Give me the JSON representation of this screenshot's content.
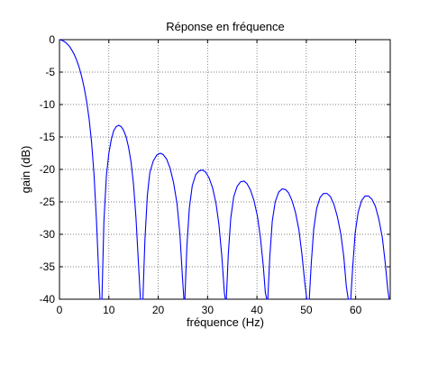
{
  "chart_data": {
    "type": "line",
    "title": "Réponse en fréquence",
    "xlabel": "fréquence (Hz)",
    "ylabel": "gain (dB)",
    "xlim": [
      0,
      67
    ],
    "ylim": [
      -40,
      0
    ],
    "xticks": [
      0,
      10,
      20,
      30,
      40,
      50,
      60
    ],
    "yticks": [
      0,
      -5,
      -10,
      -15,
      -20,
      -25,
      -30,
      -35,
      -40
    ],
    "grid": true,
    "line_color": "#0000ff",
    "series": [
      {
        "x": [
          0,
          0.5,
          1,
          1.5,
          2,
          2.5,
          3,
          3.5,
          4,
          4.5,
          5,
          5.5,
          6,
          6.5,
          7,
          7.5,
          8,
          8.2,
          8.4,
          8.6,
          9,
          9.5,
          10,
          10.5,
          11,
          11.5,
          12,
          12.5,
          13,
          13.5,
          14,
          14.5,
          15,
          15.5,
          16,
          16.4,
          16.7,
          16.9,
          17.3,
          17.8,
          18.3,
          19,
          19.7,
          20.4,
          21,
          21.7,
          22.4,
          23.1,
          23.8,
          24.4,
          24.9,
          25.2,
          25.4,
          25.8,
          26.3,
          26.9,
          27.6,
          28.3,
          29,
          29.6,
          30.3,
          31,
          31.7,
          32.3,
          32.9,
          33.4,
          33.6,
          33.8,
          34.2,
          34.7,
          35.3,
          36,
          36.7,
          37.4,
          38,
          38.7,
          39.4,
          40.1,
          40.7,
          41.3,
          41.7,
          42,
          42.2,
          42.6,
          43.1,
          43.7,
          44.4,
          45.1,
          45.8,
          46.4,
          47.1,
          47.8,
          48.5,
          49.1,
          49.7,
          50.1,
          50.4,
          50.6,
          51,
          51.5,
          52.1,
          52.8,
          53.5,
          54.2,
          54.9,
          55.6,
          56.3,
          57,
          57.6,
          58.1,
          58.5,
          58.8,
          59,
          59.4,
          59.9,
          60.5,
          61.2,
          61.9,
          62.6,
          63.3,
          64,
          64.7,
          65.4,
          66,
          66.5,
          66.8
        ],
        "y": [
          0,
          -0.1,
          -0.3,
          -0.6,
          -1.0,
          -1.6,
          -2.3,
          -3.2,
          -4.3,
          -5.7,
          -7.4,
          -9.5,
          -12.2,
          -15.8,
          -20.8,
          -28,
          -37,
          -40,
          -40,
          -40,
          -28,
          -21,
          -17.5,
          -15.4,
          -14.0,
          -13.4,
          -13.2,
          -13.4,
          -14.0,
          -15.0,
          -16.6,
          -18.9,
          -22.3,
          -27.5,
          -34.5,
          -40,
          -40,
          -40,
          -31,
          -24,
          -20.5,
          -18.7,
          -17.8,
          -17.5,
          -17.7,
          -18.4,
          -19.8,
          -22,
          -25.2,
          -30,
          -36.5,
          -40,
          -40,
          -32,
          -26,
          -22.5,
          -20.8,
          -20.2,
          -20.1,
          -20.4,
          -21.3,
          -22.8,
          -25.2,
          -28.5,
          -33.5,
          -39,
          -40,
          -40,
          -33,
          -27.5,
          -24.2,
          -22.6,
          -21.9,
          -21.8,
          -22.2,
          -23.2,
          -24.8,
          -27.2,
          -30.5,
          -35,
          -39,
          -40,
          -40,
          -33.5,
          -28,
          -25,
          -23.5,
          -23.0,
          -23.1,
          -23.6,
          -24.8,
          -26.6,
          -29.3,
          -33,
          -37.5,
          -40,
          -40,
          -40,
          -34.5,
          -29.2,
          -26.0,
          -24.3,
          -23.7,
          -23.7,
          -24.2,
          -25.4,
          -27.3,
          -30,
          -33.5,
          -38,
          -40,
          -40,
          -40,
          -35,
          -29.8,
          -26.6,
          -24.8,
          -24.1,
          -24.1,
          -24.6,
          -25.7,
          -27.7,
          -30.5,
          -34.5,
          -38.5,
          -40
        ]
      }
    ]
  }
}
